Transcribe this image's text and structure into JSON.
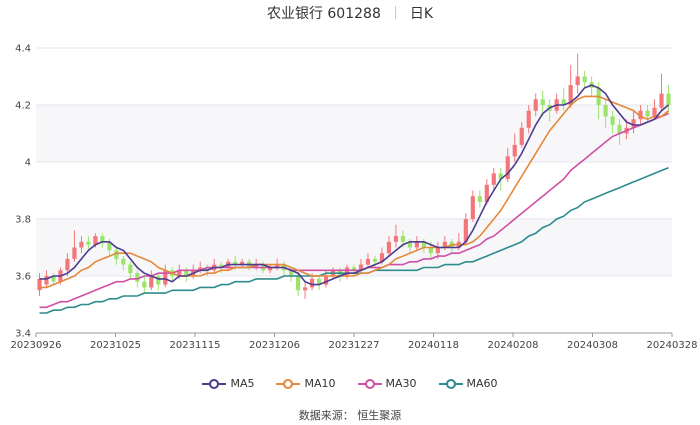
{
  "header": {
    "title": "农业银行 601288",
    "period": "日K"
  },
  "source": "数据来源：  恒生聚源",
  "colors": {
    "up": "#f3777a",
    "down": "#9be36a",
    "MA5": "#4d3b8f",
    "MA10": "#e5883a",
    "MA30": "#d04fa6",
    "MA60": "#2e8c8c"
  },
  "chart_data": {
    "type": "candlestick",
    "y_ticks": [
      "3.4",
      "3.6",
      "3.8",
      "4",
      "4.2",
      "4.4"
    ],
    "ylim": [
      3.4,
      4.4
    ],
    "x_ticks": [
      "20230926",
      "20231025",
      "20231115",
      "20231206",
      "20231227",
      "20240118",
      "20240208",
      "20240308",
      "20240328"
    ],
    "legend": [
      "MA5",
      "MA10",
      "MA30",
      "MA60"
    ],
    "candles": [
      [
        3.55,
        3.59,
        3.53,
        3.61
      ],
      [
        3.57,
        3.6,
        3.56,
        3.62
      ],
      [
        3.6,
        3.58,
        3.57,
        3.61
      ],
      [
        3.58,
        3.62,
        3.57,
        3.63
      ],
      [
        3.62,
        3.66,
        3.6,
        3.68
      ],
      [
        3.66,
        3.7,
        3.65,
        3.76
      ],
      [
        3.7,
        3.72,
        3.68,
        3.74
      ],
      [
        3.72,
        3.71,
        3.69,
        3.74
      ],
      [
        3.71,
        3.74,
        3.7,
        3.75
      ],
      [
        3.74,
        3.72,
        3.7,
        3.75
      ],
      [
        3.72,
        3.69,
        3.67,
        3.73
      ],
      [
        3.69,
        3.66,
        3.64,
        3.7
      ],
      [
        3.66,
        3.64,
        3.62,
        3.67
      ],
      [
        3.64,
        3.61,
        3.59,
        3.65
      ],
      [
        3.61,
        3.58,
        3.56,
        3.62
      ],
      [
        3.58,
        3.56,
        3.54,
        3.6
      ],
      [
        3.56,
        3.6,
        3.55,
        3.62
      ],
      [
        3.6,
        3.57,
        3.55,
        3.61
      ],
      [
        3.57,
        3.62,
        3.56,
        3.64
      ],
      [
        3.62,
        3.6,
        3.58,
        3.63
      ],
      [
        3.6,
        3.62,
        3.59,
        3.64
      ],
      [
        3.62,
        3.6,
        3.58,
        3.63
      ],
      [
        3.6,
        3.62,
        3.59,
        3.64
      ],
      [
        3.62,
        3.63,
        3.61,
        3.65
      ],
      [
        3.63,
        3.62,
        3.6,
        3.64
      ],
      [
        3.62,
        3.64,
        3.61,
        3.66
      ],
      [
        3.64,
        3.63,
        3.61,
        3.65
      ],
      [
        3.63,
        3.65,
        3.62,
        3.66
      ],
      [
        3.65,
        3.64,
        3.62,
        3.67
      ],
      [
        3.64,
        3.65,
        3.63,
        3.66
      ],
      [
        3.65,
        3.63,
        3.62,
        3.66
      ],
      [
        3.63,
        3.64,
        3.62,
        3.66
      ],
      [
        3.64,
        3.62,
        3.61,
        3.65
      ],
      [
        3.62,
        3.63,
        3.61,
        3.64
      ],
      [
        3.63,
        3.64,
        3.62,
        3.66
      ],
      [
        3.64,
        3.62,
        3.6,
        3.65
      ],
      [
        3.62,
        3.6,
        3.58,
        3.63
      ],
      [
        3.6,
        3.55,
        3.53,
        3.61
      ],
      [
        3.55,
        3.56,
        3.52,
        3.58
      ],
      [
        3.56,
        3.59,
        3.55,
        3.61
      ],
      [
        3.59,
        3.57,
        3.55,
        3.6
      ],
      [
        3.57,
        3.6,
        3.56,
        3.62
      ],
      [
        3.6,
        3.62,
        3.59,
        3.63
      ],
      [
        3.62,
        3.6,
        3.58,
        3.63
      ],
      [
        3.6,
        3.63,
        3.59,
        3.64
      ],
      [
        3.63,
        3.62,
        3.6,
        3.64
      ],
      [
        3.62,
        3.64,
        3.61,
        3.66
      ],
      [
        3.64,
        3.66,
        3.63,
        3.68
      ],
      [
        3.66,
        3.65,
        3.63,
        3.67
      ],
      [
        3.65,
        3.68,
        3.64,
        3.7
      ],
      [
        3.68,
        3.72,
        3.67,
        3.74
      ],
      [
        3.72,
        3.74,
        3.7,
        3.78
      ],
      [
        3.74,
        3.72,
        3.7,
        3.76
      ],
      [
        3.72,
        3.7,
        3.68,
        3.73
      ],
      [
        3.7,
        3.72,
        3.69,
        3.74
      ],
      [
        3.72,
        3.7,
        3.68,
        3.73
      ],
      [
        3.7,
        3.68,
        3.66,
        3.72
      ],
      [
        3.68,
        3.7,
        3.66,
        3.72
      ],
      [
        3.7,
        3.72,
        3.69,
        3.74
      ],
      [
        3.72,
        3.7,
        3.68,
        3.73
      ],
      [
        3.7,
        3.72,
        3.69,
        3.75
      ],
      [
        3.72,
        3.8,
        3.71,
        3.82
      ],
      [
        3.8,
        3.88,
        3.79,
        3.9
      ],
      [
        3.88,
        3.86,
        3.84,
        3.9
      ],
      [
        3.86,
        3.92,
        3.85,
        3.94
      ],
      [
        3.92,
        3.96,
        3.9,
        3.98
      ],
      [
        3.96,
        3.94,
        3.9,
        3.98
      ],
      [
        3.94,
        4.02,
        3.93,
        4.05
      ],
      [
        4.02,
        4.06,
        4.0,
        4.1
      ],
      [
        4.06,
        4.12,
        4.05,
        4.14
      ],
      [
        4.12,
        4.18,
        4.1,
        4.2
      ],
      [
        4.18,
        4.22,
        4.16,
        4.24
      ],
      [
        4.22,
        4.2,
        4.16,
        4.25
      ],
      [
        4.2,
        4.18,
        4.14,
        4.22
      ],
      [
        4.18,
        4.22,
        4.17,
        4.24
      ],
      [
        4.22,
        4.2,
        4.18,
        4.26
      ],
      [
        4.2,
        4.27,
        4.19,
        4.34
      ],
      [
        4.27,
        4.3,
        4.24,
        4.38
      ],
      [
        4.3,
        4.28,
        4.26,
        4.32
      ],
      [
        4.28,
        4.26,
        4.23,
        4.3
      ],
      [
        4.26,
        4.2,
        4.15,
        4.28
      ],
      [
        4.2,
        4.16,
        4.12,
        4.22
      ],
      [
        4.16,
        4.13,
        4.1,
        4.18
      ],
      [
        4.13,
        4.1,
        4.06,
        4.15
      ],
      [
        4.1,
        4.12,
        4.08,
        4.15
      ],
      [
        4.12,
        4.15,
        4.1,
        4.18
      ],
      [
        4.15,
        4.18,
        4.13,
        4.2
      ],
      [
        4.18,
        4.16,
        4.14,
        4.2
      ],
      [
        4.16,
        4.19,
        4.15,
        4.22
      ],
      [
        4.19,
        4.24,
        4.18,
        4.31
      ],
      [
        4.24,
        4.2,
        4.17,
        4.27
      ]
    ],
    "ma5": [
      3.59,
      3.59,
      3.6,
      3.6,
      3.61,
      3.63,
      3.66,
      3.69,
      3.71,
      3.72,
      3.72,
      3.7,
      3.69,
      3.66,
      3.63,
      3.61,
      3.6,
      3.59,
      3.59,
      3.58,
      3.6,
      3.6,
      3.61,
      3.62,
      3.62,
      3.63,
      3.63,
      3.64,
      3.64,
      3.64,
      3.64,
      3.64,
      3.64,
      3.63,
      3.63,
      3.63,
      3.62,
      3.61,
      3.58,
      3.57,
      3.57,
      3.58,
      3.59,
      3.6,
      3.61,
      3.61,
      3.62,
      3.63,
      3.64,
      3.65,
      3.67,
      3.69,
      3.71,
      3.72,
      3.72,
      3.72,
      3.71,
      3.7,
      3.7,
      3.7,
      3.7,
      3.72,
      3.76,
      3.81,
      3.86,
      3.9,
      3.94,
      3.96,
      3.99,
      4.03,
      4.08,
      4.13,
      4.17,
      4.19,
      4.2,
      4.2,
      4.21,
      4.23,
      4.26,
      4.27,
      4.26,
      4.24,
      4.2,
      4.17,
      4.14,
      4.13,
      4.13,
      4.14,
      4.15,
      4.18,
      4.2
    ],
    "ma10": [
      3.56,
      3.56,
      3.57,
      3.58,
      3.59,
      3.6,
      3.62,
      3.63,
      3.65,
      3.66,
      3.67,
      3.68,
      3.68,
      3.68,
      3.67,
      3.66,
      3.65,
      3.63,
      3.62,
      3.61,
      3.6,
      3.6,
      3.6,
      3.6,
      3.61,
      3.61,
      3.62,
      3.62,
      3.63,
      3.63,
      3.63,
      3.64,
      3.64,
      3.64,
      3.64,
      3.64,
      3.63,
      3.62,
      3.61,
      3.6,
      3.6,
      3.6,
      3.6,
      3.6,
      3.6,
      3.6,
      3.61,
      3.61,
      3.62,
      3.63,
      3.64,
      3.66,
      3.67,
      3.68,
      3.69,
      3.7,
      3.7,
      3.7,
      3.7,
      3.71,
      3.71,
      3.71,
      3.72,
      3.74,
      3.77,
      3.8,
      3.83,
      3.87,
      3.91,
      3.95,
      3.99,
      4.03,
      4.07,
      4.11,
      4.14,
      4.17,
      4.2,
      4.22,
      4.23,
      4.23,
      4.23,
      4.22,
      4.21,
      4.2,
      4.19,
      4.18,
      4.16,
      4.15,
      4.16,
      4.16,
      4.18
    ],
    "ma30": [
      3.49,
      3.49,
      3.5,
      3.51,
      3.51,
      3.52,
      3.53,
      3.54,
      3.55,
      3.56,
      3.57,
      3.58,
      3.58,
      3.59,
      3.59,
      3.6,
      3.6,
      3.61,
      3.61,
      3.61,
      3.62,
      3.62,
      3.62,
      3.62,
      3.63,
      3.63,
      3.63,
      3.63,
      3.63,
      3.63,
      3.63,
      3.63,
      3.63,
      3.63,
      3.63,
      3.63,
      3.62,
      3.62,
      3.62,
      3.62,
      3.62,
      3.62,
      3.62,
      3.62,
      3.62,
      3.62,
      3.62,
      3.63,
      3.63,
      3.63,
      3.64,
      3.64,
      3.64,
      3.65,
      3.65,
      3.66,
      3.66,
      3.67,
      3.67,
      3.68,
      3.68,
      3.69,
      3.7,
      3.71,
      3.73,
      3.74,
      3.76,
      3.78,
      3.8,
      3.82,
      3.84,
      3.86,
      3.88,
      3.9,
      3.92,
      3.94,
      3.97,
      3.99,
      4.01,
      4.03,
      4.05,
      4.07,
      4.09,
      4.1,
      4.11,
      4.12,
      4.13,
      4.14,
      4.15,
      4.16,
      4.17
    ],
    "ma60": [
      3.47,
      3.47,
      3.48,
      3.48,
      3.49,
      3.49,
      3.5,
      3.5,
      3.51,
      3.51,
      3.52,
      3.52,
      3.53,
      3.53,
      3.53,
      3.54,
      3.54,
      3.54,
      3.54,
      3.55,
      3.55,
      3.55,
      3.55,
      3.56,
      3.56,
      3.56,
      3.57,
      3.57,
      3.58,
      3.58,
      3.58,
      3.59,
      3.59,
      3.59,
      3.59,
      3.6,
      3.6,
      3.6,
      3.6,
      3.6,
      3.6,
      3.61,
      3.61,
      3.61,
      3.61,
      3.61,
      3.61,
      3.61,
      3.62,
      3.62,
      3.62,
      3.62,
      3.62,
      3.62,
      3.62,
      3.63,
      3.63,
      3.63,
      3.64,
      3.64,
      3.64,
      3.65,
      3.65,
      3.66,
      3.67,
      3.68,
      3.69,
      3.7,
      3.71,
      3.72,
      3.74,
      3.75,
      3.77,
      3.78,
      3.8,
      3.81,
      3.83,
      3.84,
      3.86,
      3.87,
      3.88,
      3.89,
      3.9,
      3.91,
      3.92,
      3.93,
      3.94,
      3.95,
      3.96,
      3.97,
      3.98
    ]
  }
}
